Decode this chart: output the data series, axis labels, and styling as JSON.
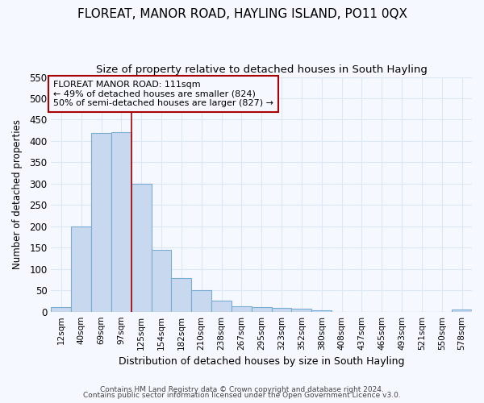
{
  "title": "FLOREAT, MANOR ROAD, HAYLING ISLAND, PO11 0QX",
  "subtitle": "Size of property relative to detached houses in South Hayling",
  "xlabel": "Distribution of detached houses by size in South Hayling",
  "ylabel": "Number of detached properties",
  "footnote1": "Contains HM Land Registry data © Crown copyright and database right 2024.",
  "footnote2": "Contains public sector information licensed under the Open Government Licence v3.0.",
  "annotation_line1": "FLOREAT MANOR ROAD: 111sqm",
  "annotation_line2": "← 49% of detached houses are smaller (824)",
  "annotation_line3": "50% of semi-detached houses are larger (827) →",
  "bar_labels": [
    "12sqm",
    "40sqm",
    "69sqm",
    "97sqm",
    "125sqm",
    "154sqm",
    "182sqm",
    "210sqm",
    "238sqm",
    "267sqm",
    "295sqm",
    "323sqm",
    "352sqm",
    "380sqm",
    "408sqm",
    "437sqm",
    "465sqm",
    "493sqm",
    "521sqm",
    "550sqm",
    "578sqm"
  ],
  "bar_values": [
    10,
    200,
    418,
    420,
    300,
    144,
    78,
    50,
    25,
    13,
    10,
    9,
    7,
    3,
    0,
    0,
    0,
    0,
    0,
    0,
    5
  ],
  "bar_color": "#c8d8ee",
  "bar_edge_color": "#7aadd4",
  "vline_x": 4.0,
  "vline_color": "#aa0000",
  "ylim": [
    0,
    550
  ],
  "yticks": [
    0,
    50,
    100,
    150,
    200,
    250,
    300,
    350,
    400,
    450,
    500,
    550
  ],
  "annotation_box_color": "#aa0000",
  "bg_color": "#f5f8ff",
  "grid_color": "#dce6f5",
  "title_fontsize": 11,
  "subtitle_fontsize": 9.5
}
